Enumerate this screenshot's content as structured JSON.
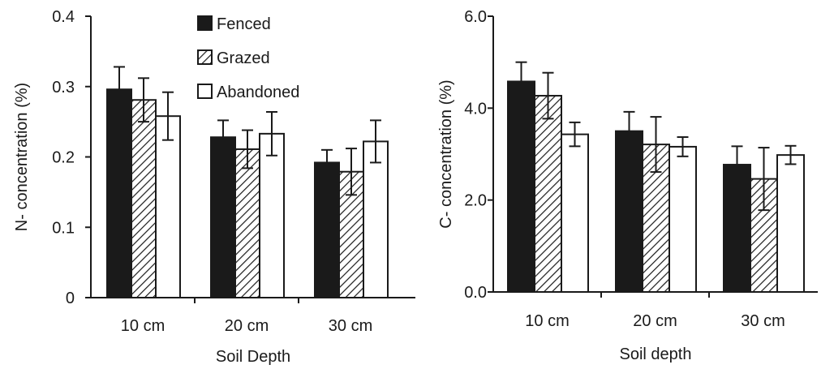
{
  "chart_data": [
    {
      "type": "bar",
      "categories": [
        "10 cm",
        "20 cm",
        "30 cm"
      ],
      "series": [
        {
          "name": "Fenced",
          "values": [
            0.296,
            0.228,
            0.192
          ],
          "errors": [
            0.032,
            0.024,
            0.018
          ],
          "fill": "solid"
        },
        {
          "name": "Grazed",
          "values": [
            0.281,
            0.211,
            0.179
          ],
          "errors": [
            0.031,
            0.027,
            0.033
          ],
          "fill": "hatched"
        },
        {
          "name": "Abandoned",
          "values": [
            0.258,
            0.233,
            0.222
          ],
          "errors": [
            0.034,
            0.031,
            0.03
          ],
          "fill": "white"
        }
      ],
      "ylim": [
        0,
        0.4
      ],
      "yticks": [
        "0",
        "0.1",
        "0.2",
        "0.3",
        "0.4"
      ],
      "xlabel": "Soil Depth",
      "ylabel": "N- concentration (%)",
      "legend": "top-center",
      "grid": false
    },
    {
      "type": "bar",
      "categories": [
        "10 cm",
        "20 cm",
        "30 cm"
      ],
      "series": [
        {
          "name": "Fenced",
          "values": [
            4.58,
            3.5,
            2.77
          ],
          "errors": [
            0.42,
            0.42,
            0.4
          ],
          "fill": "solid"
        },
        {
          "name": "Grazed",
          "values": [
            4.27,
            3.21,
            2.46
          ],
          "errors": [
            0.5,
            0.6,
            0.68
          ],
          "fill": "hatched"
        },
        {
          "name": "Abandoned",
          "values": [
            3.43,
            3.16,
            2.98
          ],
          "errors": [
            0.26,
            0.21,
            0.2
          ],
          "fill": "white"
        }
      ],
      "ylim": [
        0,
        6
      ],
      "yticks": [
        "0.0",
        "2.0",
        "4.0",
        "6.0"
      ],
      "xlabel": "Soil depth",
      "ylabel": "C- concentration (%)",
      "legend": "none",
      "grid": false
    }
  ],
  "colors": {
    "bar_solid": "#1a1a1a",
    "bar_white": "#ffffff",
    "outline": "#1a1a1a",
    "axis": "#1a1a1a"
  }
}
